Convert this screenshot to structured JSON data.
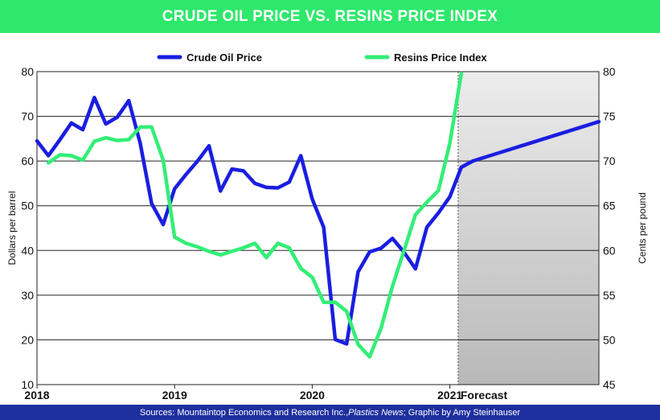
{
  "title": "CRUDE OIL PRICE VS. RESINS PRICE INDEX",
  "footer": {
    "prefix": "Sources: Mountaintop Economics and Research Inc., ",
    "italic": "Plastics News",
    "suffix": "; Graphic by Amy Steinhauser"
  },
  "colors": {
    "title_bar": "#2ee86b",
    "footer_bar": "#1e2f9e",
    "crude": "#1a1ee0",
    "resins": "#33ee77",
    "forecast_shade": "#d6d6d6"
  },
  "chart_data": {
    "type": "line",
    "xlim": [
      2018,
      2022.083
    ],
    "x_ticks": [
      {
        "x": 2018,
        "label": "2018"
      },
      {
        "x": 2019,
        "label": "2019"
      },
      {
        "x": 2020,
        "label": "2020"
      },
      {
        "x": 2021,
        "label": "2021"
      }
    ],
    "forecast": {
      "start": 2021.06,
      "label": "Forecast"
    },
    "ylabel_left": "Dollars per barrel",
    "ylabel_right": "Cents per pound",
    "ylim_left": [
      10,
      80
    ],
    "ylim_right": [
      45,
      80
    ],
    "y_ticks_left": [
      10,
      20,
      30,
      40,
      50,
      60,
      70,
      80
    ],
    "y_ticks_right": [
      45,
      50,
      55,
      60,
      65,
      70,
      75,
      80
    ],
    "grid": "horizontal",
    "legend": "top",
    "series": [
      {
        "name": "Crude Oil Price",
        "axis": "left",
        "color": "#1a1ee0",
        "x": [
          2018.0,
          2018.083,
          2018.167,
          2018.25,
          2018.333,
          2018.417,
          2018.5,
          2018.583,
          2018.667,
          2018.75,
          2018.833,
          2018.917,
          2019.0,
          2019.083,
          2019.167,
          2019.25,
          2019.333,
          2019.417,
          2019.5,
          2019.583,
          2019.667,
          2019.75,
          2019.833,
          2019.917,
          2020.0,
          2020.083,
          2020.167,
          2020.25,
          2020.333,
          2020.417,
          2020.5,
          2020.583,
          2020.667,
          2020.75,
          2020.833,
          2020.917,
          2021.0,
          2021.083,
          2021.167,
          2022.083
        ],
        "y": [
          64.5,
          61.2,
          64.8,
          68.5,
          67,
          74.2,
          68.3,
          69.8,
          73.5,
          64,
          50.5,
          45.8,
          53.8,
          57,
          60,
          63.4,
          53.3,
          58.2,
          57.8,
          55,
          54.1,
          54,
          55.3,
          61.2,
          51.5,
          45.2,
          20.1,
          19.1,
          35.2,
          39.7,
          40.5,
          42.7,
          39.6,
          35.9,
          45.2,
          48.4,
          52,
          58.6,
          60,
          68.8
        ]
      },
      {
        "name": "Resins Price Index",
        "axis": "right",
        "color": "#33ee77",
        "x": [
          2018.083,
          2018.167,
          2018.25,
          2018.333,
          2018.417,
          2018.5,
          2018.583,
          2018.667,
          2018.75,
          2018.833,
          2018.917,
          2019.0,
          2019.083,
          2019.167,
          2019.25,
          2019.333,
          2019.417,
          2019.5,
          2019.583,
          2019.667,
          2019.75,
          2019.833,
          2019.917,
          2020.0,
          2020.083,
          2020.167,
          2020.25,
          2020.333,
          2020.417,
          2020.5,
          2020.583,
          2020.667,
          2020.75,
          2020.833,
          2020.917,
          2021.0,
          2021.083
        ],
        "y": [
          69.8,
          70.7,
          70.6,
          70.1,
          72.2,
          72.6,
          72.3,
          72.4,
          73.8,
          73.8,
          70.1,
          61.5,
          60.8,
          60.4,
          59.9,
          59.5,
          59.9,
          60.3,
          60.8,
          59.2,
          60.8,
          60.3,
          58,
          57,
          54.2,
          54.2,
          53.2,
          49.5,
          48.1,
          51.3,
          56,
          60,
          64,
          65.4,
          66.7,
          72,
          79.8
        ]
      }
    ]
  }
}
